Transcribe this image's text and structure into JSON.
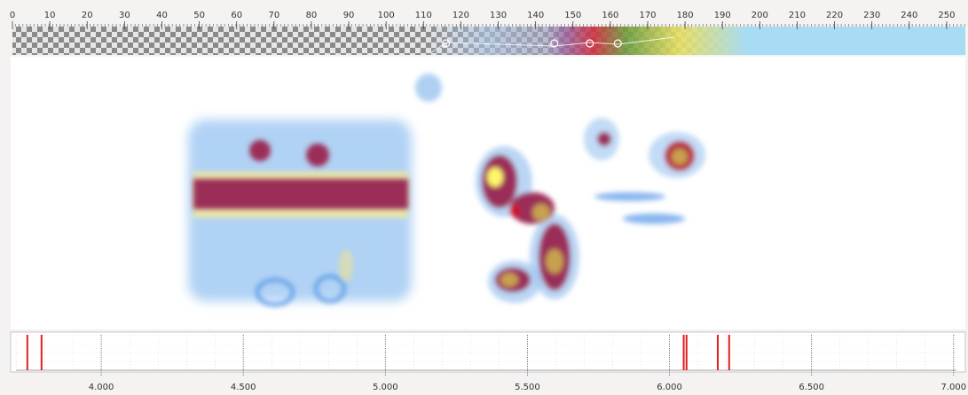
{
  "ruler": {
    "xlim": [
      0,
      255
    ],
    "ticks": [
      0,
      10,
      20,
      30,
      40,
      50,
      60,
      70,
      80,
      90,
      100,
      110,
      120,
      130,
      140,
      150,
      160,
      170,
      180,
      190,
      200,
      210,
      220,
      230,
      240,
      250
    ],
    "control_points": [
      116,
      145,
      154.5,
      162
    ]
  },
  "timeline": {
    "xlim": [
      3.7,
      7.01
    ],
    "ticks": [
      {
        "value": 4,
        "label": "4.000"
      },
      {
        "value": 4.5,
        "label": "4.500"
      },
      {
        "value": 5,
        "label": "5.000"
      },
      {
        "value": 5.5,
        "label": "5.500"
      },
      {
        "value": 6,
        "label": "6.000"
      },
      {
        "value": 6.5,
        "label": "6.500"
      },
      {
        "value": 7,
        "label": "7.000"
      }
    ],
    "markers": [
      3.74,
      3.79,
      6.05,
      6.06,
      6.17,
      6.21
    ],
    "marker_color": "#e02020"
  }
}
